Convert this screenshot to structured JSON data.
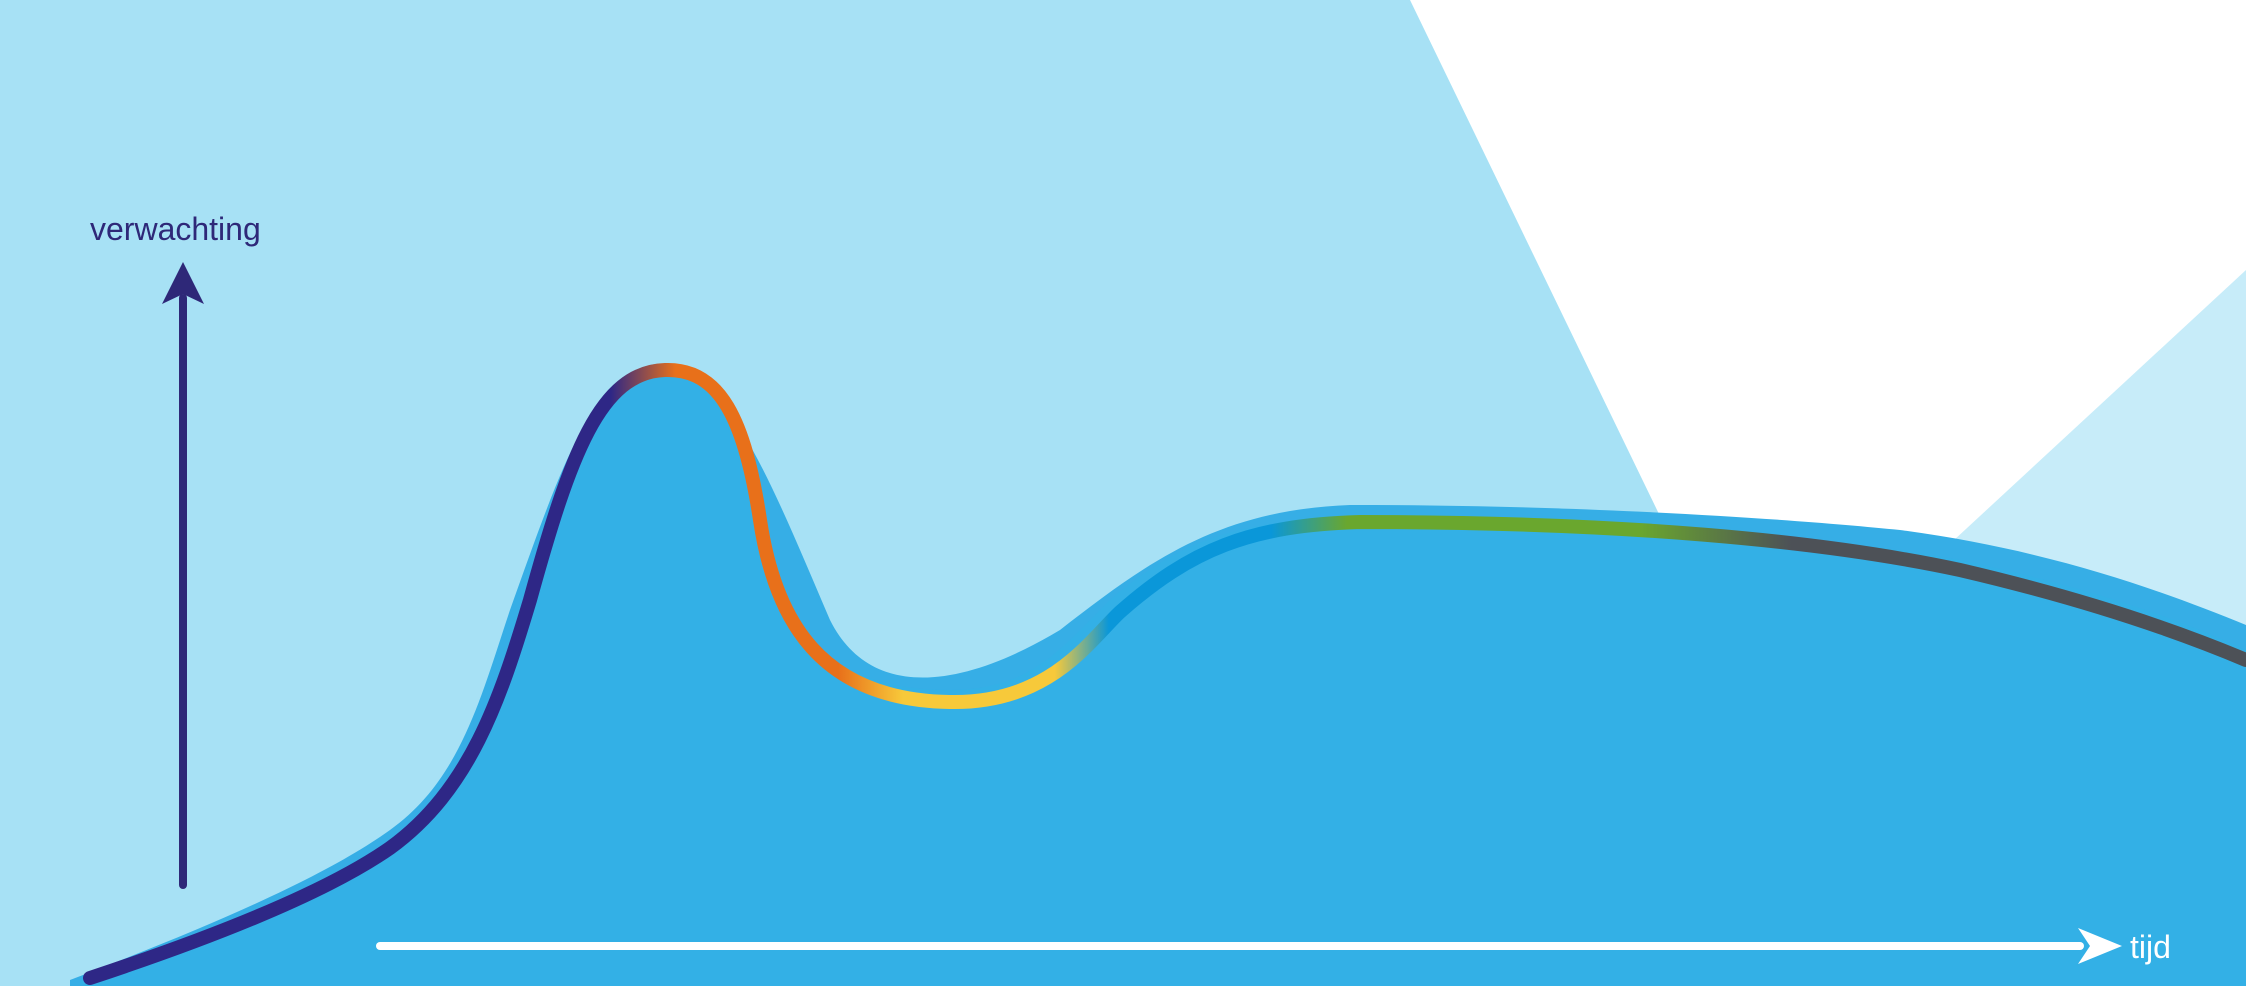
{
  "diagram": {
    "y_axis_label": "verwachting",
    "x_axis_label": "tijd"
  },
  "colors": {
    "background_light": "#a7e1f5",
    "background_lighter": "#c7ecf9",
    "hill_fill": "#33b0e6",
    "hill_outline": "#36aee6",
    "y_axis_arrow": "#2e2878",
    "x_axis_arrow": "#ffffff",
    "curve_rise": "#2e2786",
    "curve_peak": "#e8701a",
    "curve_trough": "#f7c93a",
    "curve_recovery": "#0a97d9",
    "curve_plateau": "#6aa72e",
    "curve_decline": "#4d5157",
    "label_dark": "#2e2878",
    "label_light": "#ffffff"
  }
}
